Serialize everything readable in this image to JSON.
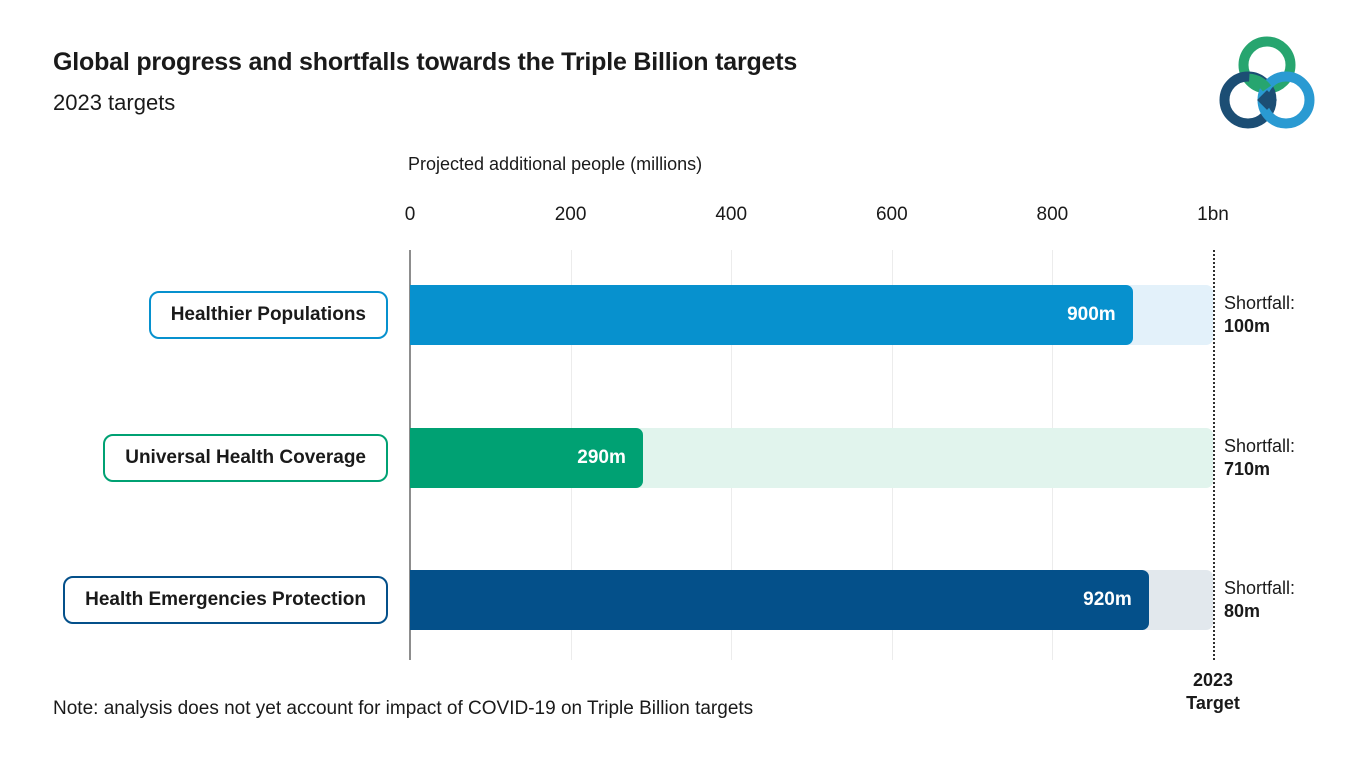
{
  "header": {
    "title": "Global progress and shortfalls towards the Triple Billion targets",
    "subtitle": "2023 targets"
  },
  "logo": {
    "name": "triple-billion-rings-logo",
    "green": "#27a56f",
    "dark_blue": "#1c4e74",
    "light_blue": "#2a9ad2"
  },
  "chart_data": {
    "type": "bar",
    "orientation": "horizontal",
    "axis_title": "Projected additional people (millions)",
    "xlim": [
      0,
      1000
    ],
    "x_ticks": [
      {
        "label": "0",
        "value": 0
      },
      {
        "label": "200",
        "value": 200
      },
      {
        "label": "400",
        "value": 400
      },
      {
        "label": "600",
        "value": 600
      },
      {
        "label": "800",
        "value": 800
      },
      {
        "label": "1bn",
        "value": 1000
      }
    ],
    "gridline_values": [
      200,
      400,
      600,
      800
    ],
    "target_value": 1000,
    "rows": [
      {
        "category": "Healthier Populations",
        "value": 900,
        "value_label": "900m",
        "shortfall_label": "Shortfall:",
        "shortfall_value": "100m",
        "bar_color": "#0791ce",
        "track_color": "#e3f1fa"
      },
      {
        "category": "Universal Health Coverage",
        "value": 290,
        "value_label": "290m",
        "shortfall_label": "Shortfall:",
        "shortfall_value": "710m",
        "bar_color": "#00a173",
        "track_color": "#e1f4ed"
      },
      {
        "category": "Health Emergencies Protection",
        "value": 920,
        "value_label": "920m",
        "shortfall_label": "Shortfall:",
        "shortfall_value": "80m",
        "bar_color": "#04508a",
        "track_color": "#e2e8ed"
      }
    ],
    "target_label_line1": "2023",
    "target_label_line2": "Target",
    "legend_position": "none",
    "grid": true
  },
  "note": "Note: analysis does not yet account for impact of COVID-19 on Triple Billion targets"
}
